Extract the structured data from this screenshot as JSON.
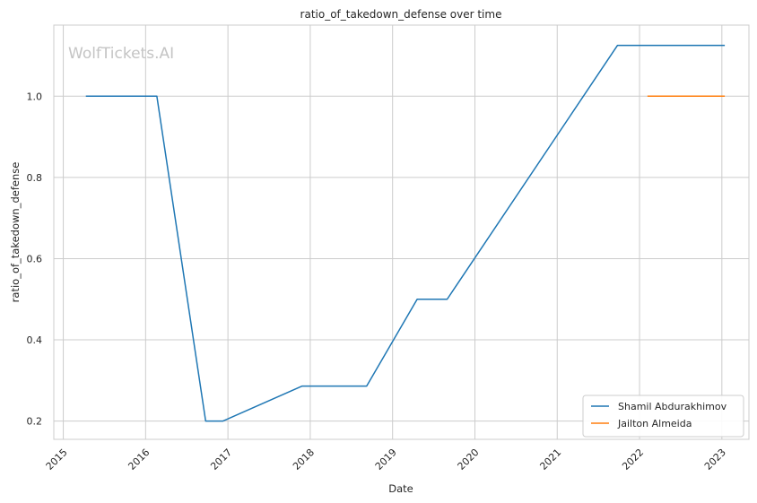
{
  "chart_data": {
    "type": "line",
    "title": "ratio_of_takedown_defense over time",
    "xlabel": "Date",
    "ylabel": "ratio_of_takedown_defense",
    "watermark": "WolfTickets.AI",
    "x_ticks": [
      "2015",
      "2016",
      "2017",
      "2018",
      "2019",
      "2020",
      "2021",
      "2022",
      "2023"
    ],
    "y_ticks": [
      "0.2",
      "0.4",
      "0.6",
      "0.8",
      "1.0"
    ],
    "xlim": [
      "2014-11-20",
      "2023-05-01"
    ],
    "ylim": [
      0.155,
      1.175
    ],
    "grid": true,
    "legend_position": "lower-right",
    "series": [
      {
        "name": "Shamil Abdurakhimov",
        "color": "#1f77b4",
        "points": [
          [
            "2015-04-11",
            1.0
          ],
          [
            "2016-02-20",
            1.0
          ],
          [
            "2016-09-24",
            0.2
          ],
          [
            "2016-12-10",
            0.2
          ],
          [
            "2017-11-25",
            0.286
          ],
          [
            "2018-09-08",
            0.286
          ],
          [
            "2019-04-20",
            0.5
          ],
          [
            "2019-08-31",
            0.5
          ],
          [
            "2021-09-25",
            1.125
          ],
          [
            "2023-01-14",
            1.125
          ]
        ]
      },
      {
        "name": "Jailton Almeida",
        "color": "#ff7f0e",
        "points": [
          [
            "2022-02-05",
            1.0
          ],
          [
            "2023-01-14",
            1.0
          ]
        ]
      }
    ]
  }
}
